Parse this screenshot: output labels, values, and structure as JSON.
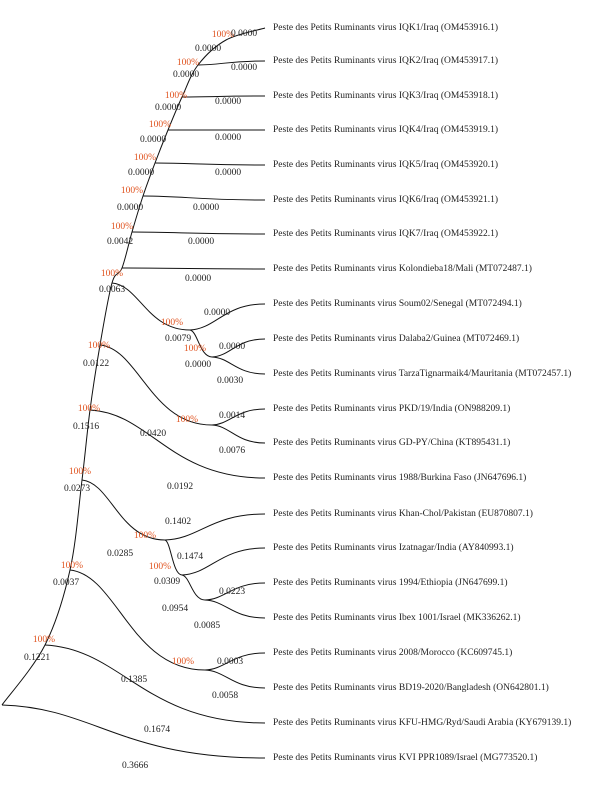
{
  "leaves": [
    "Peste des Petits Ruminants virus IQK1/Iraq (OM453916.1)",
    "Peste des Petits Ruminants virus IQK2/Iraq (OM453917.1)",
    "Peste des Petits Ruminants virus IQK3/Iraq (OM453918.1)",
    "Peste des Petits Ruminants virus IQK4/Iraq (OM453919.1)",
    "Peste des Petits Ruminants virus IQK5/Iraq (OM453920.1)",
    "Peste des Petits Ruminants virus IQK6/Iraq (OM453921.1)",
    "Peste des Petits Ruminants virus IQK7/Iraq (OM453922.1)",
    "Peste des Petits Ruminants virus Kolondieba18/Mali (MT072487.1)",
    "Peste des Petits Ruminants virus Soum02/Senegal (MT072494.1)",
    "Peste des Petits Ruminants virus Dalaba2/Guinea (MT072469.1)",
    "Peste des Petits Ruminants virus TarzaTignarmaik4/Mauritania (MT072457.1)",
    "Peste des Petits Ruminants virus PKD/19/India (ON988209.1)",
    "Peste des Petits Ruminants virus GD-PY/China (KT895431.1)",
    "Peste des Petits Ruminants virus 1988/Burkina Faso (JN647696.1)",
    "Peste des Petits Ruminants virus Khan-Chol/Pakistan (EU870807.1)",
    "Peste des Petits Ruminants virus Izatnagar/India (AY840993.1)",
    "Peste des Petits Ruminants virus 1994/Ethiopia (JN647699.1)",
    "Peste des Petits Ruminants virus Ibex 1001/Israel (MK336262.1)",
    "Peste des Petits Ruminants virus 2008/Morocco (KC609745.1)",
    "Peste des Petits Ruminants virus BD19-2020/Bangladesh (ON642801.1)",
    "Peste des Petits Ruminants virus KFU-HMG/Ryd/Saudi Arabia (KY679139.1)",
    "Peste des Petits Ruminants virus KVI PPR1089/Israel (MG773520.1)"
  ],
  "support": [
    "100%",
    "100%",
    "100%",
    "100%",
    "100%",
    "100%",
    "100%",
    "100%",
    "100%",
    "100%",
    "100%",
    "100%",
    "100%",
    "100%",
    "100%",
    "100%",
    "100%",
    "100%",
    "100%"
  ],
  "branch_lengths": [
    "0.0000",
    "0.0000",
    "0.0000",
    "0.0000",
    "0.0000",
    "0.0000",
    "0.0000",
    "0.0000",
    "0.0000",
    "0.0000",
    "0.0000",
    "0.0000",
    "0.0000",
    "0.0042",
    "0.0000",
    "0.0063",
    "0.0000",
    "0.0079",
    "0.0000",
    "0.0000",
    "0.0030",
    "0.0122",
    "0.0014",
    "0.0420",
    "0.1516",
    "0.0076",
    "0.0192",
    "0.0273",
    "0.1402",
    "0.1474",
    "0.0285",
    "0.0309",
    "0.0223",
    "0.0954",
    "0.0037",
    "0.0085",
    "0.0003",
    "0.1221",
    "0.1385",
    "0.0058",
    "0.1674",
    "0.3666"
  ]
}
